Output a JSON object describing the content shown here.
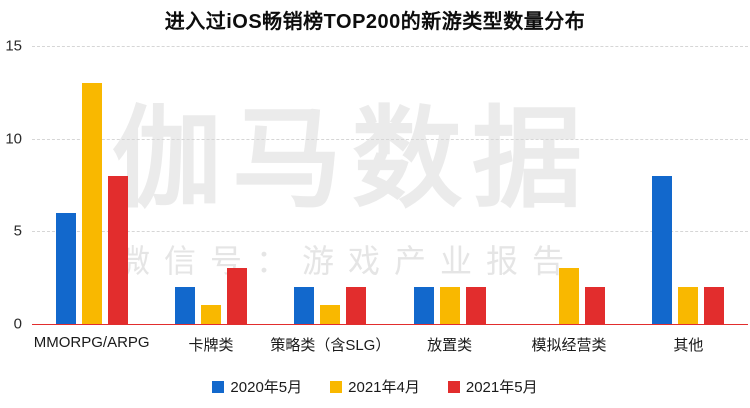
{
  "title": "进入过iOS畅销榜TOP200的新游类型数量分布",
  "watermark": {
    "line1": "伽马数据",
    "line2": "微信号：游戏产业报告"
  },
  "chart_data": {
    "type": "bar",
    "title": "进入过iOS畅销榜TOP200的新游类型数量分布",
    "categories": [
      "MMORPG/ARPG",
      "卡牌类",
      "策略类（含SLG）",
      "放置类",
      "模拟经营类",
      "其他"
    ],
    "series": [
      {
        "name": "2020年5月",
        "color": "#1268cc",
        "values": [
          6,
          2,
          2,
          2,
          0,
          8
        ]
      },
      {
        "name": "2021年4月",
        "color": "#f9b800",
        "values": [
          13,
          1,
          1,
          2,
          3,
          2
        ]
      },
      {
        "name": "2021年5月",
        "color": "#e22d2d",
        "values": [
          8,
          3,
          2,
          2,
          2,
          2
        ]
      }
    ],
    "xlabel": "",
    "ylabel": "",
    "ylim": [
      0,
      15
    ],
    "y_ticks": [
      0,
      5,
      10,
      15
    ],
    "grid": "horizontal-dashed",
    "gridline_color": "#d6d6d6",
    "baseline_color": "#e22d2d",
    "legend_position": "bottom"
  }
}
